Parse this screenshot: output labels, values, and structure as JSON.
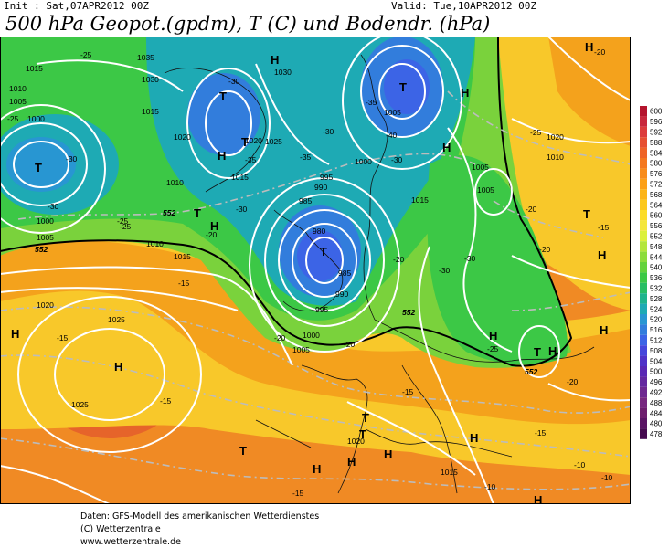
{
  "header": {
    "init": "Init : Sat,07APR2012 00Z",
    "valid": "Valid: Tue,10APR2012 00Z",
    "title": "500 hPa Geopot.(gpdm), T (C) und Bodendr. (hPa)"
  },
  "legend": {
    "values": [
      "600",
      "596",
      "592",
      "588",
      "584",
      "580",
      "576",
      "572",
      "568",
      "564",
      "560",
      "556",
      "552",
      "548",
      "544",
      "540",
      "536",
      "532",
      "528",
      "524",
      "520",
      "516",
      "512",
      "508",
      "504",
      "500",
      "496",
      "492",
      "488",
      "484",
      "480",
      "478"
    ],
    "colors": [
      "#b4142d",
      "#c8283c",
      "#dc3c3c",
      "#e65032",
      "#ee6428",
      "#f47820",
      "#f88c1c",
      "#fca018",
      "#fcb418",
      "#fcc81c",
      "#fcdc28",
      "#f4e63c",
      "#dcf03c",
      "#b4e63c",
      "#8cdc3c",
      "#64d23c",
      "#3cc846",
      "#28be64",
      "#1eb48c",
      "#1eaab4",
      "#2896d2",
      "#327ddc",
      "#3c64e6",
      "#4646dc",
      "#5032c8",
      "#5a28b4",
      "#6428a0",
      "#6e2890",
      "#782880",
      "#6e1e6e",
      "#5a1464",
      "#460a50"
    ]
  },
  "map": {
    "isobar_labels": [
      "1035",
      "1030",
      "1015",
      "1025",
      "1005",
      "1000",
      "995",
      "990",
      "985",
      "980",
      "1010",
      "1020",
      "1000",
      "1005",
      "1010",
      "1015",
      "1020",
      "1025",
      "1015",
      "1010",
      "1005",
      "1000",
      "1030",
      "1015",
      "1020",
      "1005",
      "1010",
      "1005",
      "995",
      "1020",
      "1015",
      "990",
      "985",
      "1005",
      "1000",
      "1020",
      "1015",
      "1025"
    ],
    "geopotential_labels": [
      "552",
      "552",
      "552",
      "552"
    ],
    "temp_labels": [
      "-25",
      "-30",
      "-25",
      "-25",
      "-30",
      "-30",
      "-20",
      "-35",
      "-30",
      "-35",
      "-35",
      "-30",
      "-40",
      "-30",
      "-20",
      "-30",
      "-25",
      "-20",
      "-20",
      "-15",
      "-15",
      "-15",
      "-15",
      "-15",
      "-15",
      "-10",
      "-10",
      "-20",
      "-20",
      "-20",
      "-15",
      "-25",
      "-20",
      "-30",
      "-10",
      "-25"
    ],
    "pressure_centers": [
      {
        "kind": "T",
        "desc": "low"
      },
      {
        "kind": "H",
        "desc": "high"
      },
      {
        "kind": "T",
        "desc": "low"
      },
      {
        "kind": "H",
        "desc": "high"
      },
      {
        "kind": "T",
        "desc": "low"
      },
      {
        "kind": "H",
        "desc": "high"
      },
      {
        "kind": "T",
        "desc": "low"
      },
      {
        "kind": "H",
        "desc": "high"
      },
      {
        "kind": "T",
        "desc": "low"
      },
      {
        "kind": "H",
        "desc": "high"
      },
      {
        "kind": "T",
        "desc": "low"
      },
      {
        "kind": "H",
        "desc": "high"
      },
      {
        "kind": "H",
        "desc": "high"
      },
      {
        "kind": "H",
        "desc": "high"
      },
      {
        "kind": "T",
        "desc": "low"
      },
      {
        "kind": "H",
        "desc": "high"
      },
      {
        "kind": "H",
        "desc": "high"
      },
      {
        "kind": "T",
        "desc": "low"
      },
      {
        "kind": "H",
        "desc": "high"
      },
      {
        "kind": "T",
        "desc": "low"
      },
      {
        "kind": "H",
        "desc": "high"
      },
      {
        "kind": "H",
        "desc": "high"
      },
      {
        "kind": "T",
        "desc": "low"
      },
      {
        "kind": "H",
        "desc": "high"
      },
      {
        "kind": "H",
        "desc": "high"
      },
      {
        "kind": "T",
        "desc": "low"
      },
      {
        "kind": "H",
        "desc": "high"
      },
      {
        "kind": "H",
        "desc": "high"
      }
    ]
  },
  "credits": {
    "line1": "Daten: GFS-Modell des amerikanischen Wetterdienstes",
    "line2": "(C) Wetterzentrale",
    "line3": "www.wetterzentrale.de"
  }
}
